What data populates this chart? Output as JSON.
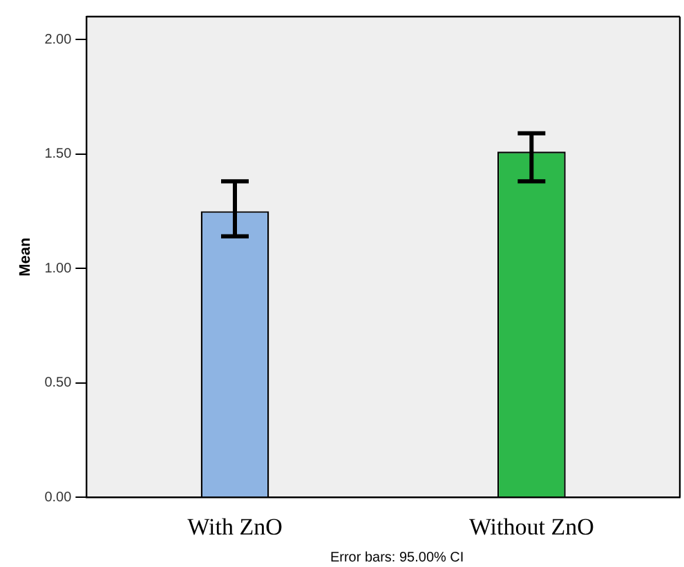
{
  "chart_data": {
    "type": "bar",
    "ylabel": "Mean",
    "categories": [
      "With ZnO",
      "Without ZnO"
    ],
    "values": [
      1.25,
      1.51
    ],
    "colors": [
      "#8eb4e3",
      "#2db84a"
    ],
    "errors": [
      [
        1.14,
        1.38
      ],
      [
        1.38,
        1.59
      ]
    ],
    "ylim": [
      0,
      2.1
    ],
    "yticks": [
      {
        "value": 0,
        "label": "0.00"
      },
      {
        "value": 0.5,
        "label": "0.50"
      },
      {
        "value": 1,
        "label": "1.00"
      },
      {
        "value": 1.5,
        "label": "1.50"
      },
      {
        "value": 2,
        "label": "2.00"
      }
    ],
    "grid": false,
    "legend": false,
    "annotations": [
      "Error bars: 95.00% CI"
    ]
  }
}
